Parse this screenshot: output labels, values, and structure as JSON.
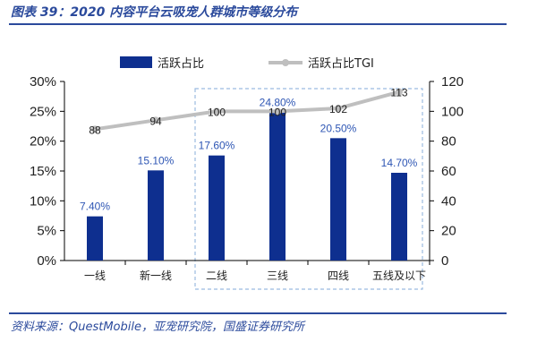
{
  "figure": {
    "title": "图表 39：2020 内容平台云吸宠人群城市等级分布",
    "source": "资料来源：QuestMobile，亚宠研究院，国盛证券研究所"
  },
  "chart_data": {
    "type": "bar",
    "title": "",
    "categories": [
      "一线",
      "新一线",
      "二线",
      "三线",
      "四线",
      "五线及以下"
    ],
    "series": [
      {
        "name": "活跃占比",
        "type": "bar",
        "axis": "left",
        "values": [
          7.4,
          15.1,
          17.6,
          24.8,
          20.5,
          14.7
        ],
        "labels": [
          "7.40%",
          "15.10%",
          "17.60%",
          "24.80%",
          "20.50%",
          "14.70%"
        ],
        "color": "#0e2f8f"
      },
      {
        "name": "活跃占比TGI",
        "type": "line",
        "axis": "right",
        "values": [
          88,
          94,
          100,
          100,
          102,
          113
        ],
        "labels": [
          "88",
          "94",
          "100",
          "100",
          "102",
          "113"
        ],
        "color": "#bfbfbf"
      }
    ],
    "y_left": {
      "min": 0,
      "max": 30,
      "ticks": [
        "0%",
        "5%",
        "10%",
        "15%",
        "20%",
        "25%",
        "30%"
      ],
      "tick_values": [
        0,
        5,
        10,
        15,
        20,
        25,
        30
      ]
    },
    "y_right": {
      "min": 0,
      "max": 120,
      "ticks": [
        "0",
        "20",
        "40",
        "60",
        "80",
        "100",
        "120"
      ],
      "tick_values": [
        0,
        20,
        40,
        60,
        80,
        100,
        120
      ]
    },
    "highlight": {
      "from_category": "二线",
      "to_category": "五线及以下",
      "style": "dashed-box",
      "color": "#9bbbe0"
    },
    "legend_position": "top",
    "grid": false
  }
}
